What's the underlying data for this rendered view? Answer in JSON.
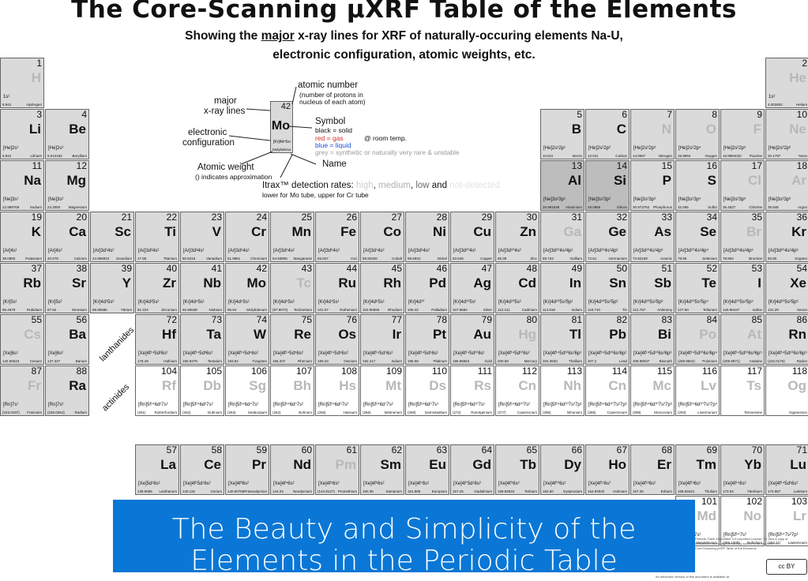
{
  "title": "The Core-Scanning µXRF Table of the Elements",
  "subtitle": {
    "pre": "Showing the ",
    "major": "major",
    "post": " x-ray lines for XRF of naturally-occuring elements Na-U,",
    "line2": "electronic configuration, atomic weights, etc."
  },
  "legend": {
    "atomic_number": "atomic number",
    "atomic_number_note1": "(number of protons in",
    "atomic_number_note2": "nucleus of each atom)",
    "major_lines_1": "major",
    "major_lines_2": "x-ray lines",
    "electronic_1": "electronic",
    "electronic_2": "configuration",
    "symbol": "Symbol",
    "symbol_black": "black = solid",
    "symbol_red": "red = gas",
    "room_temp": "@ room temp.",
    "symbol_blue": "blue = liquid",
    "symbol_grey": "grey = synthetic or naturally very rare & unstable",
    "atomic_weight": "Atomic weight",
    "atomic_weight_note": "() indicates approximation",
    "name": "Name",
    "detection_prefix": "Itrax™ detection rates: ",
    "det_high": "high",
    "det_medium": "medium",
    "det_low": "low",
    "det_and": " and ",
    "det_not": "not-detected",
    "detection_note": "lower for Mo tube, upper for Cr tube",
    "example": {
      "num": "42",
      "sym": "Mo",
      "cfg": "[Kr]4d⁵5s¹",
      "weight": "95.94",
      "name": "Molybdenum"
    }
  },
  "series_labels": {
    "lanthanides": "lanthanides",
    "actinides": "actinides"
  },
  "elements": [
    {
      "n": "1",
      "s": "H",
      "name": "Hydrogen",
      "w": "6.941",
      "cfg": "1s¹",
      "c": "g",
      "t": "grey"
    },
    {
      "n": "2",
      "s": "He",
      "name": "Helium",
      "w": "4.002602",
      "cfg": "1s²",
      "c": "g",
      "t": "grey"
    },
    {
      "n": "3",
      "s": "Li",
      "name": "Lithium",
      "w": "6.941",
      "cfg": "[He]2s¹",
      "c": "g",
      "t": ""
    },
    {
      "n": "4",
      "s": "Be",
      "name": "Beryllium",
      "w": "9.012182",
      "cfg": "[He]2s²",
      "c": "g",
      "t": ""
    },
    {
      "n": "5",
      "s": "B",
      "name": "Boron",
      "w": "10.811",
      "cfg": "[He]2s²2p¹",
      "c": "g",
      "t": ""
    },
    {
      "n": "6",
      "s": "C",
      "name": "Carbon",
      "w": "12.011",
      "cfg": "[He]2s²2p²",
      "c": "g",
      "t": ""
    },
    {
      "n": "7",
      "s": "N",
      "name": "Nitrogen",
      "w": "14.0067",
      "cfg": "[He]2s²2p³",
      "c": "g",
      "t": "grey"
    },
    {
      "n": "8",
      "s": "O",
      "name": "Oxygen",
      "w": "15.9994",
      "cfg": "[He]2s²2p⁴",
      "c": "g",
      "t": "grey"
    },
    {
      "n": "9",
      "s": "F",
      "name": "Fluorine",
      "w": "18.9984032",
      "cfg": "[He]2s²2p⁵",
      "c": "g",
      "t": "grey"
    },
    {
      "n": "10",
      "s": "Ne",
      "name": "Neon",
      "w": "20.1797",
      "cfg": "[He]2s²2p⁶",
      "c": "g",
      "t": "grey"
    },
    {
      "n": "11",
      "s": "Na",
      "name": "Sodium",
      "w": "22.989769",
      "cfg": "[Ne]3s¹",
      "c": "g",
      "t": ""
    },
    {
      "n": "12",
      "s": "Mg",
      "name": "Magnesium",
      "w": "24.3050",
      "cfg": "[Ne]3s²",
      "c": "g",
      "t": ""
    },
    {
      "n": "13",
      "s": "Al",
      "name": "Aluminium",
      "w": "26.981538",
      "cfg": "[Ne]3s²3p¹",
      "c": "d",
      "t": ""
    },
    {
      "n": "14",
      "s": "Si",
      "name": "Silicon",
      "w": "28.0855",
      "cfg": "[Ne]3s²3p²",
      "c": "d",
      "t": ""
    },
    {
      "n": "15",
      "s": "P",
      "name": "Phosphorus",
      "w": "30.973762",
      "cfg": "[Ne]3s²3p³",
      "c": "g",
      "t": ""
    },
    {
      "n": "16",
      "s": "S",
      "name": "Sulfur",
      "w": "32.065",
      "cfg": "[Ne]3s²3p⁴",
      "c": "g",
      "t": ""
    },
    {
      "n": "17",
      "s": "Cl",
      "name": "Chlorine",
      "w": "35.4527",
      "cfg": "[Ne]3s²3p⁵",
      "c": "g",
      "t": "grey"
    },
    {
      "n": "18",
      "s": "Ar",
      "name": "Argon",
      "w": "39.948",
      "cfg": "[Ne]3s²3p⁶",
      "c": "g",
      "t": "grey"
    },
    {
      "n": "19",
      "s": "K",
      "name": "Potassium",
      "w": "39.0983",
      "cfg": "[Ar]4s¹",
      "c": "g",
      "t": ""
    },
    {
      "n": "20",
      "s": "Ca",
      "name": "Calcium",
      "w": "40.078",
      "cfg": "[Ar]4s²",
      "c": "g",
      "t": ""
    },
    {
      "n": "21",
      "s": "Sc",
      "name": "Scandium",
      "w": "44.955910",
      "cfg": "[Ar]3d¹4s²",
      "c": "g",
      "t": ""
    },
    {
      "n": "22",
      "s": "Ti",
      "name": "Titanium",
      "w": "47.88",
      "cfg": "[Ar]3d²4s²",
      "c": "g",
      "t": ""
    },
    {
      "n": "23",
      "s": "V",
      "name": "Vanadium",
      "w": "50.9415",
      "cfg": "[Ar]3d³4s²",
      "c": "g",
      "t": ""
    },
    {
      "n": "24",
      "s": "Cr",
      "name": "Chromium",
      "w": "51.9961",
      "cfg": "[Ar]3d⁵4s¹",
      "c": "g",
      "t": ""
    },
    {
      "n": "25",
      "s": "Mn",
      "name": "Manganese",
      "w": "54.93805",
      "cfg": "[Ar]3d⁵4s²",
      "c": "g",
      "t": ""
    },
    {
      "n": "26",
      "s": "Fe",
      "name": "Iron",
      "w": "55.847",
      "cfg": "[Ar]3d⁶4s²",
      "c": "g",
      "t": ""
    },
    {
      "n": "27",
      "s": "Co",
      "name": "Cobalt",
      "w": "58.93320",
      "cfg": "[Ar]3d⁷4s²",
      "c": "g",
      "t": ""
    },
    {
      "n": "28",
      "s": "Ni",
      "name": "Nickel",
      "w": "58.6934",
      "cfg": "[Ar]3d⁸4s²",
      "c": "g",
      "t": ""
    },
    {
      "n": "29",
      "s": "Cu",
      "name": "Copper",
      "w": "63.546",
      "cfg": "[Ar]3d¹⁰4s¹",
      "c": "g",
      "t": ""
    },
    {
      "n": "30",
      "s": "Zn",
      "name": "Zinc",
      "w": "65.39",
      "cfg": "[Ar]3d¹⁰4s²",
      "c": "g",
      "t": ""
    },
    {
      "n": "31",
      "s": "Ga",
      "name": "Gallium",
      "w": "69.723",
      "cfg": "[Ar]3d¹⁰4s²4p¹",
      "c": "g",
      "t": "grey"
    },
    {
      "n": "32",
      "s": "Ge",
      "name": "Germanium",
      "w": "72.61",
      "cfg": "[Ar]3d¹⁰4s²4p²",
      "c": "g",
      "t": ""
    },
    {
      "n": "33",
      "s": "As",
      "name": "Arsenic",
      "w": "74.92159",
      "cfg": "[Ar]3d¹⁰4s²4p³",
      "c": "g",
      "t": ""
    },
    {
      "n": "34",
      "s": "Se",
      "name": "Selenium",
      "w": "78.96",
      "cfg": "[Ar]3d¹⁰4s²4p⁴",
      "c": "g",
      "t": ""
    },
    {
      "n": "35",
      "s": "Br",
      "name": "Bromine",
      "w": "79.904",
      "cfg": "[Ar]3d¹⁰4s²4p⁵",
      "c": "g",
      "t": "grey"
    },
    {
      "n": "36",
      "s": "Kr",
      "name": "Krypton",
      "w": "83.80",
      "cfg": "[Ar]3d¹⁰4s²4p⁶",
      "c": "g",
      "t": ""
    },
    {
      "n": "37",
      "s": "Rb",
      "name": "Rubidium",
      "w": "85.4678",
      "cfg": "[Kr]5s¹",
      "c": "g",
      "t": ""
    },
    {
      "n": "38",
      "s": "Sr",
      "name": "Strontium",
      "w": "87.62",
      "cfg": "[Kr]5s²",
      "c": "g",
      "t": ""
    },
    {
      "n": "39",
      "s": "Y",
      "name": "Yttrium",
      "w": "88.90585",
      "cfg": "[Kr]4d¹5s²",
      "c": "g",
      "t": ""
    },
    {
      "n": "40",
      "s": "Zr",
      "name": "Zirconium",
      "w": "91.224",
      "cfg": "[Kr]4d²5s²",
      "c": "g",
      "t": ""
    },
    {
      "n": "41",
      "s": "Nb",
      "name": "Niobium",
      "w": "92.90638",
      "cfg": "[Kr]4d⁴5s¹",
      "c": "g",
      "t": ""
    },
    {
      "n": "42",
      "s": "Mo",
      "name": "Molybdenum",
      "w": "95.94",
      "cfg": "[Kr]4d⁵5s¹",
      "c": "g",
      "t": ""
    },
    {
      "n": "43",
      "s": "Tc",
      "name": "Technetium",
      "w": "(97.9072)",
      "cfg": "[Kr]4d⁵5s²",
      "c": "g",
      "t": "grey"
    },
    {
      "n": "44",
      "s": "Ru",
      "name": "Ruthenium",
      "w": "101.07",
      "cfg": "[Kr]4d⁷5s¹",
      "c": "g",
      "t": ""
    },
    {
      "n": "45",
      "s": "Rh",
      "name": "Rhodium",
      "w": "102.90550",
      "cfg": "[Kr]4d⁸5s¹",
      "c": "g",
      "t": ""
    },
    {
      "n": "46",
      "s": "Pd",
      "name": "Palladium",
      "w": "106.42",
      "cfg": "[Kr]4d¹⁰",
      "c": "g",
      "t": ""
    },
    {
      "n": "47",
      "s": "Ag",
      "name": "Silver",
      "w": "107.8682",
      "cfg": "[Kr]4d¹⁰5s¹",
      "c": "g",
      "t": ""
    },
    {
      "n": "48",
      "s": "Cd",
      "name": "Cadmium",
      "w": "112.411",
      "cfg": "[Kr]4d¹⁰5s²",
      "c": "g",
      "t": ""
    },
    {
      "n": "49",
      "s": "In",
      "name": "Indium",
      "w": "114.818",
      "cfg": "[Kr]4d¹⁰5s²5p¹",
      "c": "g",
      "t": ""
    },
    {
      "n": "50",
      "s": "Sn",
      "name": "Tin",
      "w": "118.710",
      "cfg": "[Kr]4d¹⁰5s²5p²",
      "c": "g",
      "t": ""
    },
    {
      "n": "51",
      "s": "Sb",
      "name": "Antimony",
      "w": "121.757",
      "cfg": "[Kr]4d¹⁰5s²5p³",
      "c": "g",
      "t": ""
    },
    {
      "n": "52",
      "s": "Te",
      "name": "Tellurium",
      "w": "127.60",
      "cfg": "[Kr]4d¹⁰5s²5p⁴",
      "c": "g",
      "t": ""
    },
    {
      "n": "53",
      "s": "I",
      "name": "Iodine",
      "w": "126.90447",
      "cfg": "[Kr]4d¹⁰5s²5p⁵",
      "c": "g",
      "t": ""
    },
    {
      "n": "54",
      "s": "Xe",
      "name": "Xenon",
      "w": "131.29",
      "cfg": "[Kr]4d¹⁰5s²5p⁶",
      "c": "g",
      "t": ""
    },
    {
      "n": "55",
      "s": "Cs",
      "name": "Cesium",
      "w": "132.90543",
      "cfg": "[Xe]6s¹",
      "c": "g",
      "t": "grey"
    },
    {
      "n": "56",
      "s": "Ba",
      "name": "Barium",
      "w": "137.327",
      "cfg": "[Xe]6s²",
      "c": "g",
      "t": ""
    },
    {
      "n": "72",
      "s": "Hf",
      "name": "Hafnium",
      "w": "178.49",
      "cfg": "[Xe]4f¹⁴5d²6s²",
      "c": "g",
      "t": ""
    },
    {
      "n": "73",
      "s": "Ta",
      "name": "Tantalum",
      "w": "180.9479",
      "cfg": "[Xe]4f¹⁴5d³6s²",
      "c": "g",
      "t": ""
    },
    {
      "n": "74",
      "s": "W",
      "name": "Tungsten",
      "w": "183.84",
      "cfg": "[Xe]4f¹⁴5d⁴6s²",
      "c": "g",
      "t": ""
    },
    {
      "n": "75",
      "s": "Re",
      "name": "Rhenium",
      "w": "186.207",
      "cfg": "[Xe]4f¹⁴5d⁵6s²",
      "c": "g",
      "t": ""
    },
    {
      "n": "76",
      "s": "Os",
      "name": "Osmium",
      "w": "190.23",
      "cfg": "[Xe]4f¹⁴5d⁶6s²",
      "c": "g",
      "t": ""
    },
    {
      "n": "77",
      "s": "Ir",
      "name": "Iridium",
      "w": "192.217",
      "cfg": "[Xe]4f¹⁴5d⁷6s²",
      "c": "g",
      "t": ""
    },
    {
      "n": "78",
      "s": "Pt",
      "name": "Platinum",
      "w": "195.08",
      "cfg": "[Xe]4f¹⁴5d⁹6s¹",
      "c": "g",
      "t": ""
    },
    {
      "n": "79",
      "s": "Au",
      "name": "Gold",
      "w": "196.96654",
      "cfg": "[Xe]4f¹⁴5d¹⁰6s¹",
      "c": "g",
      "t": ""
    },
    {
      "n": "80",
      "s": "Hg",
      "name": "Mercury",
      "w": "200.59",
      "cfg": "[Xe]4f¹⁴5d¹⁰6s²",
      "c": "g",
      "t": "grey"
    },
    {
      "n": "81",
      "s": "Tl",
      "name": "Thallium",
      "w": "204.3833",
      "cfg": "[Xe]4f¹⁴5d¹⁰6s²6p¹",
      "c": "g",
      "t": ""
    },
    {
      "n": "82",
      "s": "Pb",
      "name": "Lead",
      "w": "207.2",
      "cfg": "[Xe]4f¹⁴5d¹⁰6s²6p²",
      "c": "g",
      "t": ""
    },
    {
      "n": "83",
      "s": "Bi",
      "name": "Bismuth",
      "w": "208.98037",
      "cfg": "[Xe]4f¹⁴5d¹⁰6s²6p³",
      "c": "g",
      "t": ""
    },
    {
      "n": "84",
      "s": "Po",
      "name": "Polonium",
      "w": "(208.9824)",
      "cfg": "[Xe]4f¹⁴5d¹⁰6s²6p⁴",
      "c": "g",
      "t": "grey"
    },
    {
      "n": "85",
      "s": "At",
      "name": "Astatine",
      "w": "(209.9871)",
      "cfg": "[Xe]4f¹⁴5d¹⁰6s²6p⁵",
      "c": "g",
      "t": "grey"
    },
    {
      "n": "86",
      "s": "Rn",
      "name": "Radon",
      "w": "(222.0176)",
      "cfg": "[Xe]4f¹⁴5d¹⁰6s²6p⁶",
      "c": "g",
      "t": ""
    },
    {
      "n": "87",
      "s": "Fr",
      "name": "Francium",
      "w": "(223.0197)",
      "cfg": "[Rn]7s¹",
      "c": "g",
      "t": "grey"
    },
    {
      "n": "88",
      "s": "Ra",
      "name": "Radium",
      "w": "(226.0254)",
      "cfg": "[Rn]7s²",
      "c": "g",
      "t": ""
    },
    {
      "n": "104",
      "s": "Rf",
      "name": "Rutherfordium",
      "w": "(261)",
      "cfg": "[Rn]5f¹⁴6d²7s²",
      "c": "",
      "t": "grey"
    },
    {
      "n": "105",
      "s": "Db",
      "name": "Dubnium",
      "w": "(262)",
      "cfg": "[Rn]5f¹⁴6d³7s²",
      "c": "",
      "t": "grey"
    },
    {
      "n": "106",
      "s": "Sg",
      "name": "Seaborgium",
      "w": "(263)",
      "cfg": "[Rn]5f¹⁴6d⁴7s²",
      "c": "",
      "t": "grey"
    },
    {
      "n": "107",
      "s": "Bh",
      "name": "Bohrium",
      "w": "(262)",
      "cfg": "[Rn]5f¹⁴6d⁵7s²",
      "c": "",
      "t": "grey"
    },
    {
      "n": "108",
      "s": "Hs",
      "name": "Hassium",
      "w": "(265)",
      "cfg": "[Rn]5f¹⁴6d⁶7s²",
      "c": "",
      "t": "grey"
    },
    {
      "n": "109",
      "s": "Mt",
      "name": "Meitnerium",
      "w": "(266)",
      "cfg": "[Rn]5f¹⁴6d⁷7s²",
      "c": "",
      "t": "grey"
    },
    {
      "n": "110",
      "s": "Ds",
      "name": "Darmstadtium",
      "w": "(269)",
      "cfg": "[Rn]5f¹⁴6d⁹7s¹",
      "c": "",
      "t": "grey"
    },
    {
      "n": "111",
      "s": "Rs",
      "name": "Roentgenium",
      "w": "(272)",
      "cfg": "[Rn]5f¹⁴6d¹⁰7s¹",
      "c": "",
      "t": "grey"
    },
    {
      "n": "112",
      "s": "Cn",
      "name": "Copernicium",
      "w": "(277)",
      "cfg": "[Rn]5f¹⁴6d¹⁰7s²",
      "c": "",
      "t": "grey"
    },
    {
      "n": "113",
      "s": "Nh",
      "name": "Nihonium",
      "w": "(286)",
      "cfg": "[Rn]5f¹⁴6d¹⁰7s²7p¹",
      "c": "",
      "t": "grey"
    },
    {
      "n": "114",
      "s": "Cn",
      "name": "Copernicium",
      "w": "(285)",
      "cfg": "[Rn]5f¹⁴6d¹⁰7s²7p²",
      "c": "",
      "t": "grey"
    },
    {
      "n": "115",
      "s": "Mc",
      "name": "Moscovium",
      "w": "(289)",
      "cfg": "[Rn]5f¹⁴6d¹⁰7s²7p³",
      "c": "",
      "t": "grey"
    },
    {
      "n": "116",
      "s": "Lv",
      "name": "Livermorium",
      "w": "(293)",
      "cfg": "[Rn]5f¹⁴6d¹⁰7s²7p⁴",
      "c": "",
      "t": "grey"
    },
    {
      "n": "117",
      "s": "Ts",
      "name": "Tennessine",
      "w": "",
      "cfg": "",
      "c": "",
      "t": "grey"
    },
    {
      "n": "118",
      "s": "Og",
      "name": "Oganesson",
      "w": "",
      "cfg": "",
      "c": "",
      "t": "grey"
    },
    {
      "n": "57",
      "s": "La",
      "name": "Lanthanum",
      "w": "138.9055",
      "cfg": "[Xe]5d¹6s²",
      "c": "g",
      "t": ""
    },
    {
      "n": "58",
      "s": "Ce",
      "name": "Cerium",
      "w": "140.115",
      "cfg": "[Xe]4f¹5d¹6s²",
      "c": "g",
      "t": ""
    },
    {
      "n": "59",
      "s": "Pr",
      "name": "Praseodymium",
      "w": "140.90765",
      "cfg": "[Xe]4f³6s²",
      "c": "g",
      "t": ""
    },
    {
      "n": "60",
      "s": "Nd",
      "name": "Neodymium",
      "w": "144.24",
      "cfg": "[Xe]4f⁴6s²",
      "c": "g",
      "t": ""
    },
    {
      "n": "61",
      "s": "Pm",
      "name": "Promethium",
      "w": "(144.9127)",
      "cfg": "[Xe]4f⁵6s²",
      "c": "g",
      "t": "grey"
    },
    {
      "n": "62",
      "s": "Sm",
      "name": "Samarium",
      "w": "150.36",
      "cfg": "[Xe]4f⁶6s²",
      "c": "g",
      "t": ""
    },
    {
      "n": "63",
      "s": "Eu",
      "name": "Europium",
      "w": "151.965",
      "cfg": "[Xe]4f⁷6s²",
      "c": "g",
      "t": ""
    },
    {
      "n": "64",
      "s": "Gd",
      "name": "Gadolinium",
      "w": "157.25",
      "cfg": "[Xe]4f⁷5d¹6s²",
      "c": "g",
      "t": ""
    },
    {
      "n": "65",
      "s": "Tb",
      "name": "Terbium",
      "w": "158.92534",
      "cfg": "[Xe]4f⁹6s²",
      "c": "g",
      "t": ""
    },
    {
      "n": "66",
      "s": "Dy",
      "name": "Dysprosium",
      "w": "162.50",
      "cfg": "[Xe]4f¹⁰6s²",
      "c": "g",
      "t": ""
    },
    {
      "n": "67",
      "s": "Ho",
      "name": "Holmium",
      "w": "164.93032",
      "cfg": "[Xe]4f¹¹6s²",
      "c": "g",
      "t": ""
    },
    {
      "n": "68",
      "s": "Er",
      "name": "Erbium",
      "w": "167.26",
      "cfg": "[Xe]4f¹²6s²",
      "c": "g",
      "t": ""
    },
    {
      "n": "69",
      "s": "Tm",
      "name": "Thulium",
      "w": "168.93421",
      "cfg": "[Xe]4f¹³6s²",
      "c": "g",
      "t": ""
    },
    {
      "n": "70",
      "s": "Yb",
      "name": "Ytterbium",
      "w": "173.04",
      "cfg": "[Xe]4f¹⁴6s²",
      "c": "g",
      "t": ""
    },
    {
      "n": "71",
      "s": "Lu",
      "name": "Lutetium",
      "w": "174.967",
      "cfg": "[Xe]4f¹⁴5d¹6s²",
      "c": "g",
      "t": ""
    },
    {
      "n": "101",
      "s": "Md",
      "name": "Mendelevium",
      "w": "",
      "cfg": "[Rn]5f¹³7s²",
      "c": "",
      "t": "grey"
    },
    {
      "n": "102",
      "s": "No",
      "name": "Nobelium",
      "w": "(259.1009)",
      "cfg": "[Rn]5f¹⁴7s²",
      "c": "",
      "t": "grey"
    },
    {
      "n": "103",
      "s": "Lr",
      "name": "Lawrencium",
      "w": "(262.11)",
      "cfg": "[Rn]5f¹⁴7s²7p¹",
      "c": "",
      "t": "grey"
    }
  ],
  "banner": {
    "line1": "The Beauty and Simplicity of the",
    "line2": "Elements in the Periodic Table"
  },
  "license": {
    "badge": "cc BY",
    "fine1": "Periodic Table ShareAlike 3.0 Unported License. To view a copy of",
    "fine2": "creativecommons.org/licenses/by-sa/3.0/ or send a letter to",
    "fine3": "Core-Scanning µXRF Table of the Elements",
    "footer": "An electronic version of this document is available at"
  },
  "colors": {
    "banner": "#0a77d6",
    "gas": "#d82b2b",
    "grey_symbol": "#b8b8b8",
    "cell_grey": "#dadada",
    "cell_dark": "#bdbdbd"
  }
}
